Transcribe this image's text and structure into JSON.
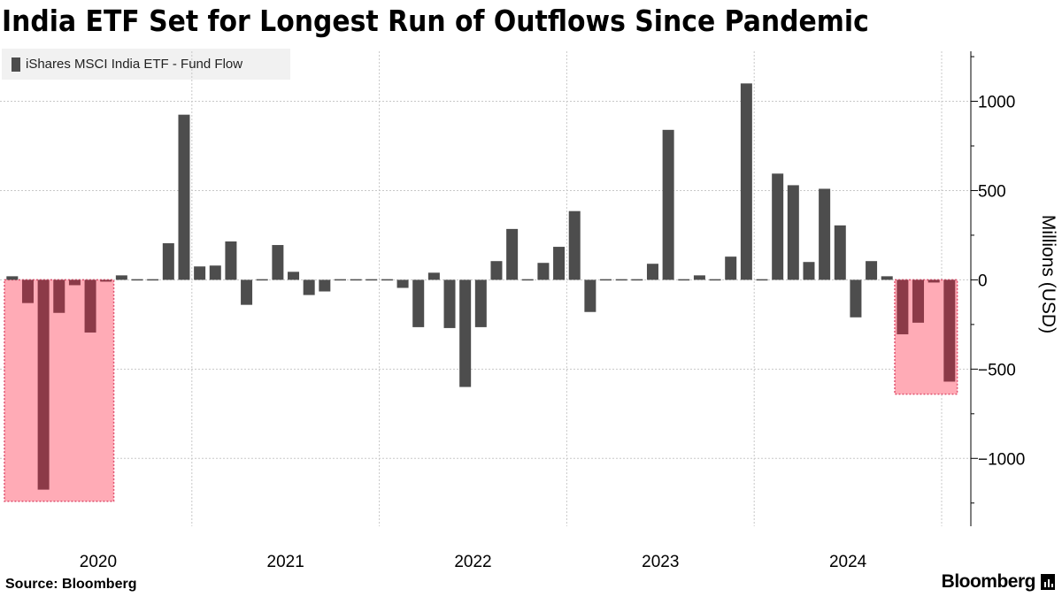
{
  "title": "India ETF Set for Longest Run of Outflows Since Pandemic",
  "source": "Source: Bloomberg",
  "brand": "Bloomberg",
  "chart_data": {
    "type": "bar",
    "legend": "iShares MSCI India ETF - Fund Flow",
    "ylabel": "Millions (USD)",
    "ylim": [
      -1380,
      1280
    ],
    "yticks": [
      1000,
      500,
      0,
      -500,
      -1000
    ],
    "x_year_labels": [
      {
        "label": "2020",
        "month_pos": 6
      },
      {
        "label": "2021",
        "month_pos": 18
      },
      {
        "label": "2022",
        "month_pos": 30
      },
      {
        "label": "2023",
        "month_pos": 42
      },
      {
        "label": "2024",
        "month_pos": 54
      }
    ],
    "x_year_boundaries": [
      12,
      24,
      36,
      48,
      60
    ],
    "series": [
      {
        "name": "iShares MSCI India ETF - Fund Flow",
        "start": "2020-01",
        "values": [
          20,
          -130,
          -1175,
          -185,
          -30,
          -295,
          -10,
          25,
          0,
          -5,
          205,
          925,
          75,
          80,
          215,
          -140,
          -5,
          195,
          45,
          -85,
          -65,
          -5,
          0,
          0,
          0,
          -45,
          -265,
          40,
          -270,
          -600,
          -265,
          105,
          285,
          5,
          95,
          185,
          385,
          -180,
          -5,
          0,
          0,
          90,
          840,
          -5,
          25,
          0,
          130,
          1100,
          0,
          595,
          530,
          100,
          510,
          305,
          -210,
          105,
          20,
          -305,
          -240,
          -15,
          -570
        ]
      }
    ],
    "highlight_regions": [
      {
        "from_index": 0,
        "to_index": 6,
        "ymax": 0,
        "ymin": -1240
      },
      {
        "from_index": 57,
        "to_index": 60,
        "ymax": 0,
        "ymin": -640
      }
    ]
  },
  "colors": {
    "bar": "#4d4d4d",
    "bar_highlight": "#8c3a48",
    "highlight_fill": "#ffabb6",
    "highlight_border": "#e0506e",
    "grid": "#c8c8c8"
  }
}
